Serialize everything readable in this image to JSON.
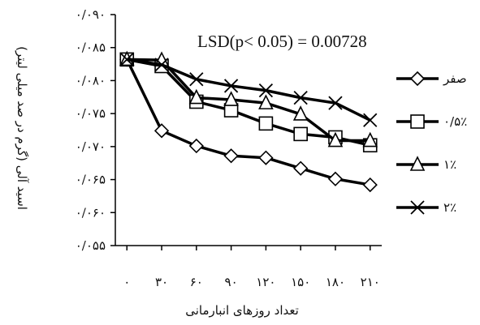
{
  "chart_data": {
    "type": "line",
    "xlabel": "تعداد روزهای انبارمانی",
    "ylabel": "اسید آلی (گرم در صد میلی لیتر)",
    "annotation": "LSD(p< 0.05) = 0.00728",
    "x": [
      0,
      30,
      60,
      90,
      120,
      150,
      180,
      210
    ],
    "x_tick_labels": [
      "۰",
      "۳۰",
      "۶۰",
      "۹۰",
      "۱۲۰",
      "۱۵۰",
      "۱۸۰",
      "۲۱۰"
    ],
    "y_ticks": [
      0.055,
      0.06,
      0.065,
      0.07,
      0.075,
      0.08,
      0.085,
      0.09
    ],
    "y_tick_labels": [
      "۰/۰۵۵",
      "۰/۰۶۰",
      "۰/۰۶۵",
      "۰/۰۷۰",
      "۰/۰۷۵",
      "۰/۰۸۰",
      "۰/۰۸۵",
      "۰/۰۹۰"
    ],
    "ylim": [
      0.055,
      0.09
    ],
    "xlim": [
      -10,
      220
    ],
    "grid": false,
    "legend_position": "right",
    "series": [
      {
        "name": "صفر",
        "marker": "diamond",
        "values": [
          0.0832,
          0.0724,
          0.0701,
          0.0686,
          0.0683,
          0.0667,
          0.0651,
          0.0642
        ]
      },
      {
        "name": "۰/۵٪",
        "marker": "square",
        "values": [
          0.0832,
          0.0822,
          0.0768,
          0.0755,
          0.0735,
          0.0719,
          0.0714,
          0.0702
        ]
      },
      {
        "name": "۱٪",
        "marker": "triangle",
        "values": [
          0.0832,
          0.0831,
          0.0774,
          0.0771,
          0.0766,
          0.0749,
          0.0709,
          0.0709
        ]
      },
      {
        "name": "۲٪",
        "marker": "x",
        "values": [
          0.0832,
          0.0824,
          0.0802,
          0.0792,
          0.0785,
          0.0774,
          0.0766,
          0.074
        ]
      }
    ]
  }
}
